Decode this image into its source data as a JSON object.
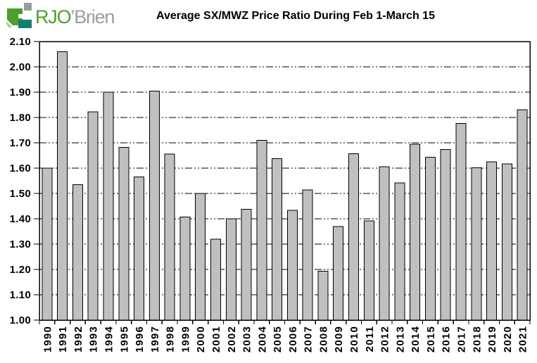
{
  "logo": {
    "text_green": "RJO",
    "text_gray": "’Brien",
    "colors": {
      "green": "#4F9D2E",
      "gray": "#9C9EA0",
      "teal": "#157D71",
      "slate": "#939B9C",
      "light_green": "#AFCF8C"
    }
  },
  "chart_data": {
    "type": "bar",
    "title": "Average SX/MWZ Price Ratio During Feb 1-March 15",
    "xlabel": "",
    "ylabel": "",
    "categories": [
      "1990",
      "1991",
      "1992",
      "1993",
      "1994",
      "1995",
      "1996",
      "1997",
      "1998",
      "1999",
      "2000",
      "2001",
      "2002",
      "2003",
      "2004",
      "2005",
      "2006",
      "2007",
      "2008",
      "2009",
      "2010",
      "2011",
      "2012",
      "2013",
      "2014",
      "2015",
      "2016",
      "2017",
      "2018",
      "2019",
      "2020",
      "2021"
    ],
    "values": [
      1.6,
      2.06,
      1.535,
      1.822,
      1.9,
      1.682,
      1.565,
      1.904,
      1.655,
      1.407,
      1.5,
      1.32,
      1.4,
      1.437,
      1.71,
      1.638,
      1.433,
      1.514,
      1.193,
      1.37,
      1.657,
      1.392,
      1.606,
      1.541,
      1.695,
      1.643,
      1.674,
      1.777,
      1.602,
      1.625,
      1.616,
      1.83
    ],
    "ylim": [
      1.0,
      2.1
    ],
    "ytick_step": 0.1,
    "ytick_labels": [
      "1.00",
      "1.10",
      "1.20",
      "1.30",
      "1.40",
      "1.50",
      "1.60",
      "1.70",
      "1.80",
      "1.90",
      "2.00",
      "2.10"
    ],
    "grid": "horizontal-dashed",
    "plot_border": true,
    "legend": "none",
    "bar_fill": "#C0C0C0",
    "bar_stroke": "#000000",
    "x_labels_rotated_degrees": -90
  }
}
